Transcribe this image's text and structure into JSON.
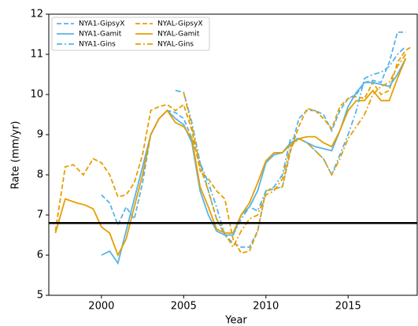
{
  "chart_data": {
    "type": "line",
    "xlabel": "Year",
    "ylabel": "Rate (mm/yr)",
    "xlim": [
      1996.8,
      2019.2
    ],
    "ylim": [
      5,
      12
    ],
    "xticks": [
      2000,
      2005,
      2010,
      2015
    ],
    "yticks": [
      5,
      6,
      7,
      8,
      9,
      10,
      11,
      12
    ],
    "legend": "upper left",
    "reference_line": {
      "value": 6.8,
      "color": "#000000"
    },
    "series": [
      {
        "name": "NYA1-GipsyX",
        "color": "#56b4e9",
        "linestyle": "dashed",
        "x": [
          2000,
          2000.5,
          2001,
          2001.5,
          2002,
          2002.5,
          2003,
          2003.5,
          2004,
          2004.5,
          2005,
          2005.5,
          2006,
          2006.5,
          2007,
          2007.5,
          2008,
          2008.5,
          2009,
          2009.5,
          2010,
          2010.5,
          2011,
          2011.5,
          2012,
          2012.5,
          2013,
          2013.5,
          2014,
          2014.5,
          2015,
          2015.5,
          2016,
          2016.5,
          2017,
          2017.5,
          2018,
          2018.5
        ],
        "values": [
          7.5,
          7.3,
          6.75,
          7.2,
          6.9,
          7.8,
          9.0,
          9.4,
          9.6,
          9.55,
          9.4,
          8.9,
          8.3,
          7.6,
          6.9,
          6.5,
          6.3,
          6.2,
          6.2,
          6.6,
          7.6,
          7.65,
          7.7,
          8.6,
          9.4,
          9.6,
          9.6,
          9.5,
          9.1,
          9.6,
          9.9,
          10.0,
          10.3,
          10.35,
          10.3,
          10.8,
          11.55,
          11.55
        ]
      },
      {
        "name": "NYAL-GipsyX",
        "color": "#e69f00",
        "linestyle": "dashed",
        "x": [
          1997.2,
          1997.8,
          1998.3,
          1998.9,
          1999.5,
          2000,
          2000.5,
          2001,
          2001.5,
          2002,
          2002.5,
          2003,
          2003.5,
          2004,
          2004.5,
          2005,
          2005.5,
          2006,
          2006.5,
          2007,
          2007.5,
          2008,
          2008.5,
          2009,
          2009.5,
          2010,
          2010.5,
          2011,
          2011.5,
          2012,
          2012.5,
          2013,
          2013.5,
          2014,
          2014.5,
          2015,
          2015.5,
          2016,
          2016.5,
          2017,
          2017.5,
          2018,
          2018.5,
          2018.9
        ],
        "values": [
          6.6,
          8.2,
          8.25,
          8.0,
          8.4,
          8.3,
          8.0,
          7.45,
          7.5,
          7.8,
          8.5,
          9.6,
          9.7,
          9.75,
          9.6,
          9.75,
          9.1,
          8.1,
          7.9,
          7.6,
          7.4,
          6.4,
          6.05,
          6.1,
          6.6,
          7.6,
          7.65,
          7.7,
          8.6,
          9.2,
          9.65,
          9.6,
          9.4,
          9.15,
          9.7,
          9.9,
          9.95,
          9.9,
          10.3,
          10.0,
          10.1,
          10.8,
          11.1,
          11.2
        ]
      },
      {
        "name": "NYA1-Gamit",
        "color": "#56b4e9",
        "linestyle": "solid",
        "x": [
          2000,
          2000.5,
          2001,
          2001.5,
          2002,
          2002.5,
          2003,
          2003.5,
          2004,
          2004.5,
          2005,
          2005.5,
          2006,
          2006.5,
          2007,
          2007.5,
          2008,
          2008.5,
          2009,
          2009.5,
          2010,
          2010.5,
          2011,
          2011.5,
          2012,
          2012.5,
          2013,
          2013.5,
          2014,
          2014.5,
          2015,
          2015.5,
          2016,
          2016.5,
          2017,
          2017.5,
          2018,
          2018.5
        ],
        "values": [
          6.0,
          6.1,
          5.8,
          6.6,
          7.4,
          8.2,
          9.0,
          9.4,
          9.6,
          9.4,
          9.25,
          8.8,
          7.6,
          7.0,
          6.6,
          6.5,
          6.5,
          7.0,
          7.2,
          7.6,
          8.3,
          8.5,
          8.55,
          8.8,
          8.9,
          8.8,
          8.7,
          8.65,
          8.6,
          9.1,
          9.7,
          10.05,
          10.3,
          10.3,
          10.25,
          10.2,
          10.5,
          10.9
        ]
      },
      {
        "name": "NYAL-Gamit",
        "color": "#e69f00",
        "linestyle": "solid",
        "x": [
          1997.2,
          1997.8,
          1998.5,
          1999,
          1999.5,
          2000,
          2000.5,
          2001,
          2001.5,
          2002,
          2002.5,
          2003,
          2003.5,
          2004,
          2004.5,
          2005,
          2005.5,
          2006,
          2006.5,
          2007,
          2007.5,
          2008,
          2008.5,
          2009,
          2009.5,
          2010,
          2010.5,
          2011,
          2011.5,
          2012,
          2012.5,
          2013,
          2013.5,
          2014,
          2014.5,
          2015,
          2015.5,
          2016,
          2016.5,
          2017,
          2017.5,
          2018,
          2018.5
        ],
        "values": [
          6.55,
          7.4,
          7.3,
          7.25,
          7.15,
          6.7,
          6.55,
          6.0,
          6.4,
          7.2,
          8.0,
          9.0,
          9.4,
          9.6,
          9.3,
          9.2,
          8.9,
          7.7,
          7.2,
          6.65,
          6.55,
          6.55,
          7.0,
          7.3,
          7.8,
          8.35,
          8.55,
          8.55,
          8.75,
          8.9,
          8.95,
          8.95,
          8.8,
          8.7,
          9.1,
          9.6,
          9.85,
          9.85,
          10.1,
          9.85,
          9.85,
          10.4,
          10.9
        ]
      },
      {
        "name": "NYA1-Gins",
        "color": "#56b4e9",
        "linestyle": "dashdot",
        "x": [
          2004.5,
          2005,
          2005.5,
          2006,
          2006.5,
          2007,
          2007.5,
          2008,
          2008.5,
          2009,
          2009.5,
          2010,
          2010.5,
          2011,
          2011.5,
          2012,
          2012.5,
          2013,
          2013.5,
          2014,
          2014.5,
          2015,
          2015.5,
          2016,
          2016.5,
          2017,
          2017.5,
          2018,
          2018.5
        ],
        "values": [
          10.1,
          10.05,
          9.3,
          8.3,
          7.8,
          7.2,
          6.5,
          6.5,
          6.9,
          7.2,
          7.1,
          7.6,
          7.7,
          8.0,
          8.9,
          8.9,
          8.8,
          8.6,
          8.4,
          8.0,
          8.5,
          9.0,
          9.6,
          10.4,
          10.5,
          10.55,
          10.7,
          11.0,
          11.2
        ]
      },
      {
        "name": "NYAL-Gins",
        "color": "#e69f00",
        "linestyle": "dashdot",
        "x": [
          2005,
          2005.5,
          2006,
          2006.5,
          2007,
          2007.5,
          2008,
          2008.5,
          2009,
          2009.5,
          2010,
          2010.5,
          2011,
          2011.5,
          2012,
          2012.5,
          2013,
          2013.5,
          2014,
          2014.5,
          2015,
          2015.5,
          2016,
          2016.5,
          2017,
          2017.5,
          2018,
          2018.5
        ],
        "values": [
          10.05,
          9.2,
          8.2,
          7.6,
          6.9,
          6.55,
          6.2,
          6.6,
          6.9,
          7.0,
          7.5,
          7.6,
          7.9,
          8.7,
          8.9,
          8.8,
          8.6,
          8.4,
          8.0,
          8.4,
          8.9,
          9.2,
          9.5,
          10.0,
          10.2,
          10.3,
          10.7,
          11.0
        ]
      }
    ]
  }
}
